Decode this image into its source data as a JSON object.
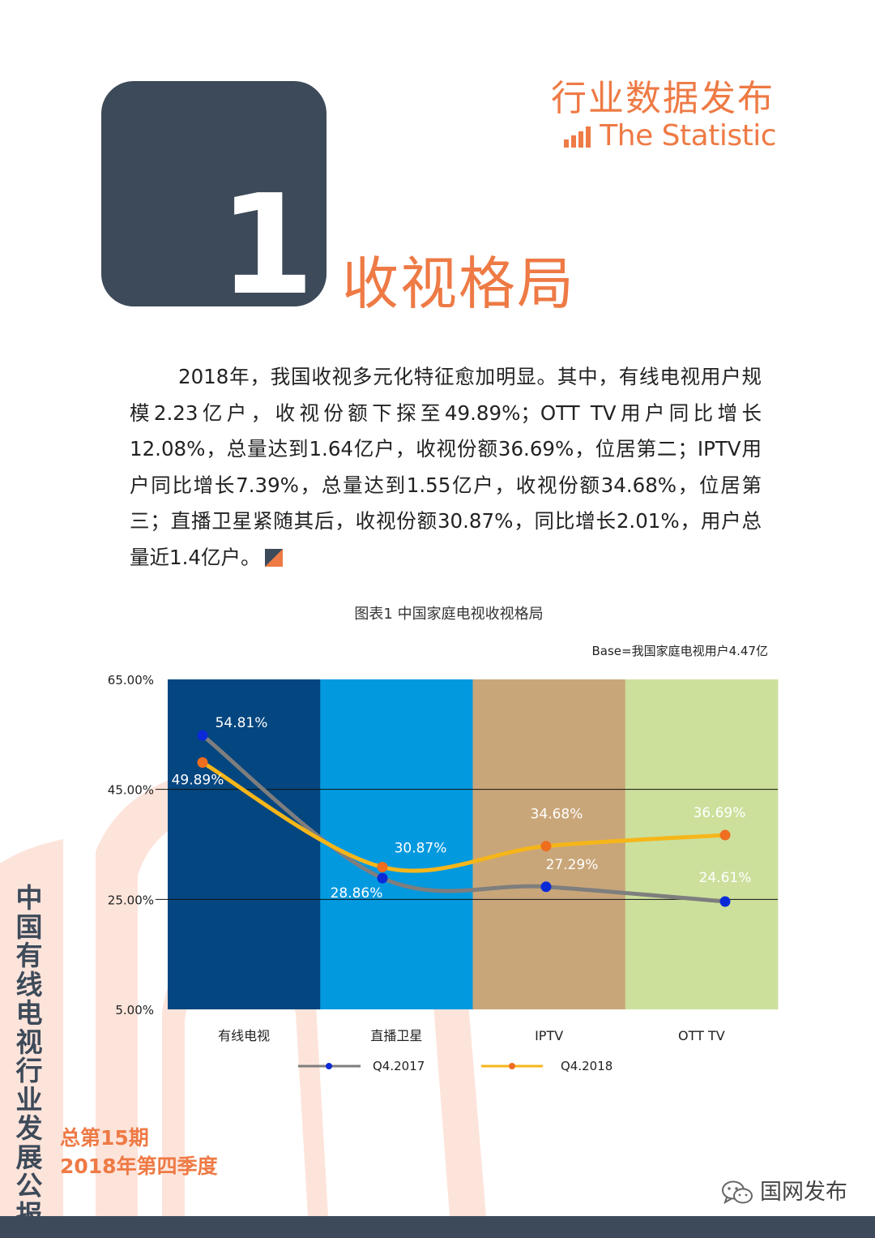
{
  "header": {
    "brand_cn": "行业数据发布",
    "brand_en": "The Statistic"
  },
  "section": {
    "number": "1",
    "title": "收视格局"
  },
  "paragraph": "2018年，我国收视多元化特征愈加明显。其中，有线电视用户规模2.23亿户，收视份额下探至49.89%；OTT TV用户同比增长12.08%，总量达到1.64亿户，收视份额36.69%，位居第二；IPTV用户同比增长7.39%，总量达到1.55亿户，收视份额34.68%，位居第三；直播卫星紧随其后，收视份额30.87%，同比增长2.01%，用户总量近1.4亿户。",
  "chart_data": {
    "type": "line",
    "title": "图表1 中国家庭电视收视格局",
    "base_note": "Base=我国家庭电视用户4.47亿",
    "categories": [
      "有线电视",
      "直播卫星",
      "IPTV",
      "OTT TV"
    ],
    "category_colors": [
      "#04467f",
      "#0399df",
      "#c9a679",
      "#cce09c"
    ],
    "series": [
      {
        "name": "Q4.2017",
        "values": [
          54.81,
          28.86,
          27.29,
          24.61
        ],
        "labels": [
          "54.81%",
          "28.86%",
          "27.29%",
          "24.61%"
        ],
        "line_color": "#7e7e7e",
        "marker_color": "#0a2ad8"
      },
      {
        "name": "Q4.2018",
        "values": [
          49.89,
          30.87,
          34.68,
          36.69
        ],
        "labels": [
          "49.89%",
          "30.87%",
          "34.68%",
          "36.69%"
        ],
        "line_color": "#f6b61a",
        "marker_color": "#ee6d1f"
      }
    ],
    "y_ticks": [
      65,
      45,
      25,
      5
    ],
    "y_tick_labels": [
      "65.00%",
      "45.00%",
      "25.00%",
      "5.00%"
    ],
    "ylim": [
      5,
      65
    ],
    "gridlines_at": [
      45,
      25
    ],
    "xlabel": "",
    "ylabel": "",
    "legend": "bottom"
  },
  "sidebar": {
    "vertical_title": "中国有线电视行业发展公报",
    "issue_number": "总第15期",
    "issue_period": "2018年第四季度"
  },
  "footer": {
    "wechat_account": "国网发布"
  }
}
